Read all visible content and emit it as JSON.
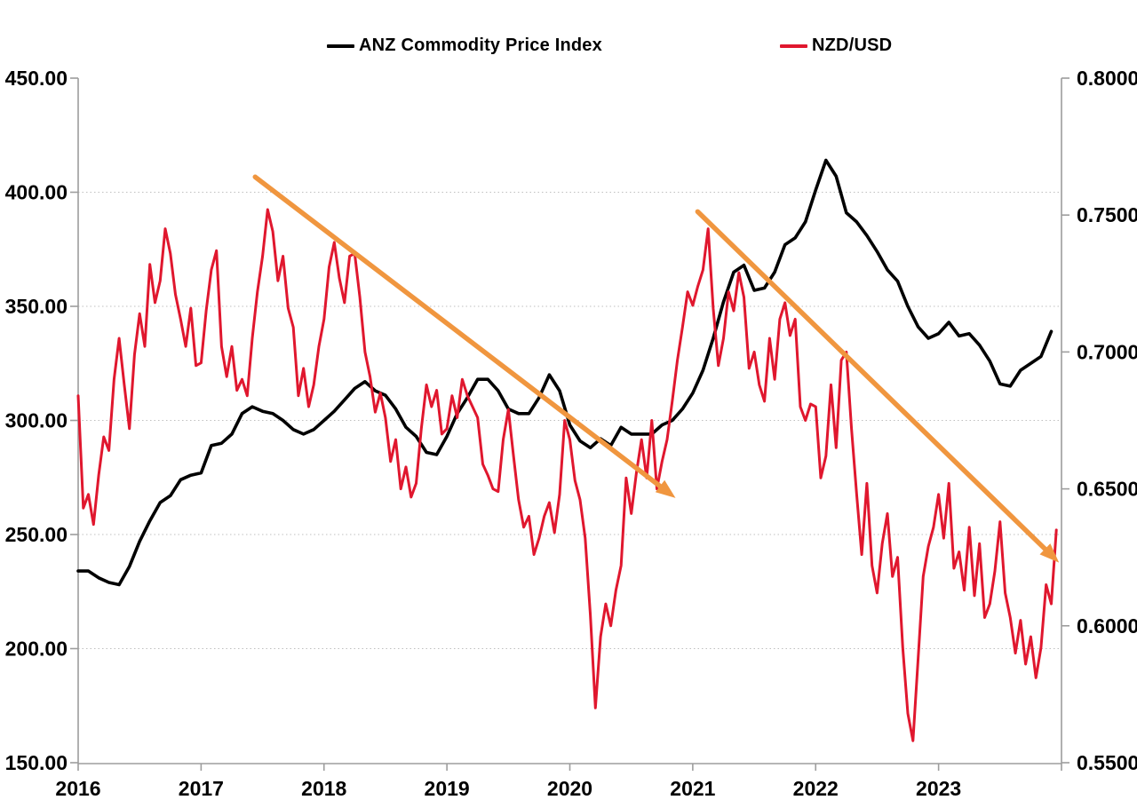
{
  "legend": {
    "items": [
      {
        "id": "anz",
        "label": "ANZ Commodity Price Index",
        "color": "#000000"
      },
      {
        "id": "nzd",
        "label": "NZD/USD",
        "color": "#E0172E"
      }
    ]
  },
  "chart_data": {
    "type": "line",
    "title": "",
    "x_axis": {
      "range": [
        2016,
        2024
      ],
      "tick_years": [
        2016,
        2017,
        2018,
        2019,
        2020,
        2021,
        2022,
        2023,
        2024
      ],
      "tick_labels": [
        "2016",
        "2017",
        "2018",
        "2019",
        "2020",
        "2021",
        "2022",
        "2023"
      ]
    },
    "left_axis": {
      "range": [
        150,
        450
      ],
      "ticks": [
        {
          "value": 450,
          "label": "450.00"
        },
        {
          "value": 400,
          "label": "400.00"
        },
        {
          "value": 350,
          "label": "350.00"
        },
        {
          "value": 300,
          "label": "300.00"
        },
        {
          "value": 250,
          "label": "250.00"
        },
        {
          "value": 200,
          "label": "200.00"
        },
        {
          "value": 150,
          "label": "150.00"
        }
      ]
    },
    "right_axis": {
      "range": [
        0.55,
        0.8
      ],
      "ticks": [
        {
          "value": 0.8,
          "label": "0.8000"
        },
        {
          "value": 0.75,
          "label": "0.7500"
        },
        {
          "value": 0.7,
          "label": "0.7000"
        },
        {
          "value": 0.65,
          "label": "0.6500"
        },
        {
          "value": 0.6,
          "label": "0.6000"
        },
        {
          "value": 0.55,
          "label": "0.5500"
        }
      ]
    },
    "grid": {
      "horizontal_values": [
        400,
        350,
        300,
        250,
        200
      ],
      "color": "#BFBFBF",
      "style": "dotted"
    },
    "series": [
      {
        "name": "ANZ Commodity Price Index",
        "axis": "left",
        "color": "#000000",
        "stroke_width": 3.6,
        "start_year": 2016,
        "points_per_year": 12,
        "values": [
          234,
          234,
          231,
          229,
          228,
          236,
          247,
          256,
          264,
          267,
          274,
          276,
          277,
          289,
          290,
          294,
          303,
          306,
          304,
          303,
          300,
          296,
          294,
          296,
          300,
          304,
          309,
          314,
          317,
          313,
          311,
          305,
          297,
          293,
          286,
          285,
          293,
          303,
          310,
          318,
          318,
          313,
          305,
          303,
          303,
          310,
          320,
          313,
          298,
          291,
          288,
          292,
          289,
          297,
          294,
          294,
          294,
          298,
          300,
          305,
          312,
          322,
          336,
          352,
          365,
          368,
          357,
          358,
          365,
          377,
          380,
          387,
          401,
          414,
          407,
          391,
          387,
          381,
          374,
          366,
          361,
          350,
          341,
          336,
          338,
          343,
          337,
          338,
          333,
          326,
          316,
          315,
          322,
          325,
          328,
          339
        ]
      },
      {
        "name": "NZD/USD",
        "axis": "right",
        "color": "#E0172E",
        "stroke_width": 3.0,
        "start_year": 2016,
        "points_per_year": 24,
        "values": [
          0.684,
          0.643,
          0.648,
          0.637,
          0.655,
          0.669,
          0.664,
          0.69,
          0.705,
          0.688,
          0.672,
          0.699,
          0.714,
          0.702,
          0.732,
          0.718,
          0.726,
          0.745,
          0.736,
          0.721,
          0.712,
          0.702,
          0.716,
          0.695,
          0.696,
          0.715,
          0.73,
          0.737,
          0.702,
          0.691,
          0.702,
          0.686,
          0.69,
          0.684,
          0.705,
          0.722,
          0.735,
          0.752,
          0.744,
          0.726,
          0.735,
          0.716,
          0.709,
          0.684,
          0.694,
          0.68,
          0.688,
          0.702,
          0.712,
          0.731,
          0.74,
          0.727,
          0.718,
          0.735,
          0.736,
          0.72,
          0.7,
          0.691,
          0.678,
          0.685,
          0.676,
          0.66,
          0.668,
          0.65,
          0.658,
          0.647,
          0.652,
          0.672,
          0.688,
          0.68,
          0.686,
          0.67,
          0.672,
          0.684,
          0.676,
          0.69,
          0.684,
          0.68,
          0.676,
          0.659,
          0.655,
          0.65,
          0.649,
          0.668,
          0.679,
          0.662,
          0.646,
          0.636,
          0.64,
          0.626,
          0.632,
          0.64,
          0.645,
          0.634,
          0.648,
          0.675,
          0.668,
          0.653,
          0.646,
          0.632,
          0.604,
          0.57,
          0.596,
          0.608,
          0.6,
          0.613,
          0.622,
          0.654,
          0.641,
          0.656,
          0.668,
          0.654,
          0.675,
          0.65,
          0.66,
          0.668,
          0.682,
          0.697,
          0.709,
          0.722,
          0.717,
          0.724,
          0.73,
          0.745,
          0.716,
          0.695,
          0.705,
          0.722,
          0.715,
          0.729,
          0.72,
          0.694,
          0.7,
          0.688,
          0.682,
          0.705,
          0.69,
          0.712,
          0.718,
          0.706,
          0.712,
          0.68,
          0.675,
          0.681,
          0.68,
          0.654,
          0.662,
          0.688,
          0.665,
          0.697,
          0.7,
          0.672,
          0.648,
          0.626,
          0.652,
          0.622,
          0.612,
          0.63,
          0.641,
          0.618,
          0.625,
          0.592,
          0.568,
          0.558,
          0.588,
          0.618,
          0.629,
          0.636,
          0.648,
          0.632,
          0.652,
          0.621,
          0.627,
          0.613,
          0.636,
          0.611,
          0.63,
          0.603,
          0.608,
          0.62,
          0.638,
          0.612,
          0.603,
          0.59,
          0.602,
          0.586,
          0.596,
          0.581,
          0.592,
          0.615,
          0.608,
          0.635
        ]
      }
    ],
    "annotations": {
      "arrows": [
        {
          "from_x": 2017.44,
          "from_left_value": 406.7,
          "to_x": 2020.86,
          "to_left_value": 266.0,
          "color": "#F0963F"
        },
        {
          "from_x": 2021.04,
          "from_left_value": 391.5,
          "to_x": 2023.98,
          "to_left_value": 237.7,
          "color": "#F0963F"
        }
      ]
    },
    "style": {
      "axis_line_color": "#9D9D9D",
      "text_color": "#000000"
    }
  }
}
